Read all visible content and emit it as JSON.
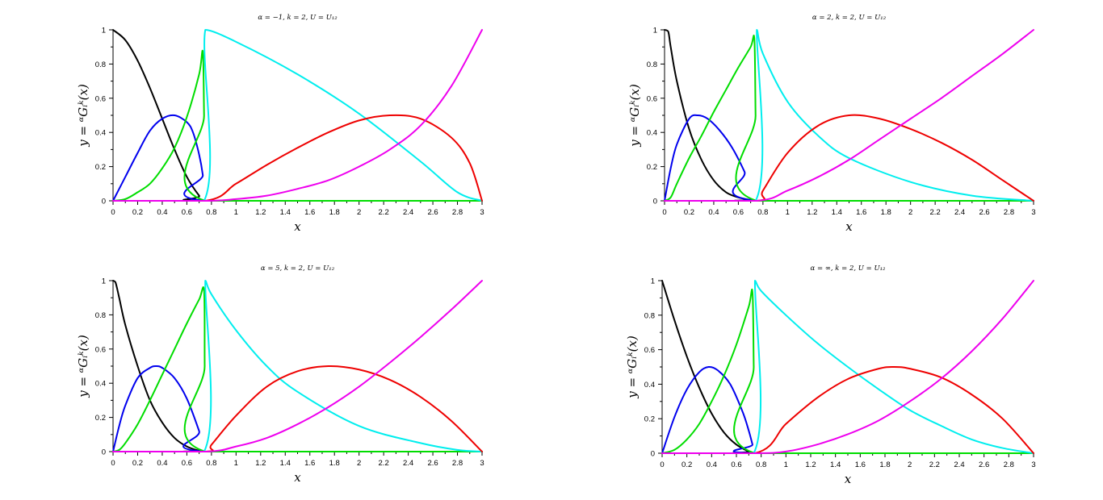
{
  "chart_data": [
    {
      "type": "line",
      "title": "α = −1, k = 2, U = U₁₂",
      "xlabel": "x",
      "ylabel": "y = ᵅGᵢᵏ(x)",
      "xlim": [
        0,
        3
      ],
      "ylim": [
        0,
        1
      ],
      "xticks": [
        0,
        0.2,
        0.4,
        0.6,
        0.8,
        1,
        1.2,
        1.4,
        1.6,
        1.8,
        2,
        2.2,
        2.4,
        2.6,
        2.8,
        3
      ],
      "xtick_labels": [
        "0",
        "0.2",
        "0.4",
        "0.6",
        "0.8",
        "1",
        "1.2",
        "1.4",
        "1.6",
        "1.8",
        "2",
        "2.2",
        "2.4",
        "2.6",
        "2.8",
        "3"
      ],
      "yticks": [
        0,
        0.2,
        0.4,
        0.6,
        0.8,
        1
      ],
      "ytick_labels": [
        "0",
        "0.2",
        "0.4",
        "0.6",
        "0.8",
        "1"
      ],
      "grid": false,
      "series": [
        {
          "color": "#000000",
          "x": [
            0,
            0.1,
            0.2,
            0.3,
            0.4,
            0.5,
            0.6,
            0.7,
            0.75,
            3
          ],
          "y": [
            1,
            0.94,
            0.82,
            0.66,
            0.48,
            0.3,
            0.14,
            0.03,
            0,
            0
          ]
        },
        {
          "color": "#0000ee",
          "x": [
            0,
            0.1,
            0.2,
            0.3,
            0.4,
            0.5,
            0.6,
            0.65,
            0.7,
            0.73,
            0.75,
            3
          ],
          "y": [
            0,
            0.14,
            0.28,
            0.41,
            0.48,
            0.5,
            0.46,
            0.4,
            0.27,
            0.15,
            0,
            0
          ]
        },
        {
          "color": "#00dd00",
          "x": [
            0,
            0.1,
            0.2,
            0.3,
            0.4,
            0.5,
            0.6,
            0.7,
            0.73,
            0.74,
            0.75,
            3
          ],
          "y": [
            0,
            0.01,
            0.05,
            0.1,
            0.19,
            0.31,
            0.49,
            0.74,
            0.87,
            0.5,
            0,
            0
          ]
        },
        {
          "color": "#00eeee",
          "x": [
            0,
            0.74,
            0.75,
            1,
            1.5,
            2,
            2.5,
            2.8,
            3
          ],
          "y": [
            0,
            0,
            1,
            0.93,
            0.74,
            0.51,
            0.23,
            0.05,
            0
          ]
        },
        {
          "color": "#ee0000",
          "x": [
            0,
            0.75,
            1,
            1.25,
            1.5,
            1.75,
            2,
            2.25,
            2.5,
            2.75,
            2.9,
            3
          ],
          "y": [
            0,
            0,
            0.1,
            0.21,
            0.31,
            0.4,
            0.47,
            0.5,
            0.48,
            0.37,
            0.22,
            0
          ]
        },
        {
          "color": "#ee00ee",
          "x": [
            0,
            0.75,
            1,
            1.25,
            1.5,
            1.75,
            2,
            2.25,
            2.5,
            2.75,
            3
          ],
          "y": [
            0,
            0,
            0.01,
            0.03,
            0.07,
            0.12,
            0.2,
            0.3,
            0.44,
            0.67,
            1
          ]
        }
      ]
    },
    {
      "type": "line",
      "title": "α = 2, k = 2, U = U₁₂",
      "xlabel": "x",
      "ylabel": "y = ᵅGᵢᵏ(x)",
      "xlim": [
        0,
        3
      ],
      "ylim": [
        0,
        1
      ],
      "xticks": [
        0,
        0.2,
        0.4,
        0.6,
        0.8,
        1,
        1.2,
        1.4,
        1.6,
        1.8,
        2,
        2.2,
        2.4,
        2.6,
        2.8,
        3
      ],
      "xtick_labels": [
        "0",
        "0.2",
        "0.4",
        "0.6",
        "0.8",
        "1",
        "1.2",
        "1.4",
        "1.6",
        "1.8",
        "2",
        "2.2",
        "2.4",
        "2.6",
        "2.8",
        "3"
      ],
      "yticks": [
        0,
        0.2,
        0.4,
        0.6,
        0.8,
        1
      ],
      "ytick_labels": [
        "0",
        "0.2",
        "0.4",
        "0.6",
        "0.8",
        "1"
      ],
      "grid": false,
      "series": [
        {
          "color": "#000000",
          "x": [
            0,
            0.03,
            0.05,
            0.1,
            0.2,
            0.3,
            0.4,
            0.5,
            0.6,
            0.7,
            0.75,
            3
          ],
          "y": [
            1,
            0.99,
            0.9,
            0.7,
            0.42,
            0.24,
            0.12,
            0.05,
            0.02,
            0.005,
            0,
            0
          ]
        },
        {
          "color": "#0000ee",
          "x": [
            0,
            0.05,
            0.1,
            0.2,
            0.27,
            0.35,
            0.45,
            0.55,
            0.65,
            0.75,
            3
          ],
          "y": [
            0,
            0.19,
            0.33,
            0.48,
            0.5,
            0.48,
            0.41,
            0.31,
            0.17,
            0,
            0
          ]
        },
        {
          "color": "#00dd00",
          "x": [
            0,
            0.05,
            0.1,
            0.2,
            0.3,
            0.4,
            0.5,
            0.6,
            0.7,
            0.73,
            0.74,
            0.75,
            3
          ],
          "y": [
            0,
            0.02,
            0.1,
            0.25,
            0.38,
            0.52,
            0.65,
            0.78,
            0.9,
            0.95,
            0.5,
            0,
            0
          ]
        },
        {
          "color": "#00eeee",
          "x": [
            0,
            0.74,
            0.75,
            0.8,
            1,
            1.25,
            1.5,
            2,
            2.5,
            3
          ],
          "y": [
            0,
            0,
            1,
            0.86,
            0.58,
            0.38,
            0.25,
            0.11,
            0.03,
            0
          ]
        },
        {
          "color": "#ee0000",
          "x": [
            0,
            0.75,
            0.8,
            1,
            1.25,
            1.5,
            1.75,
            2,
            2.25,
            2.5,
            2.75,
            3
          ],
          "y": [
            0,
            0,
            0.06,
            0.28,
            0.44,
            0.5,
            0.48,
            0.42,
            0.34,
            0.24,
            0.12,
            0
          ]
        },
        {
          "color": "#ee00ee",
          "x": [
            0,
            0.75,
            1,
            1.25,
            1.5,
            1.75,
            2,
            2.25,
            2.5,
            2.75,
            3
          ],
          "y": [
            0,
            0,
            0.06,
            0.14,
            0.24,
            0.36,
            0.48,
            0.6,
            0.73,
            0.86,
            1
          ]
        }
      ]
    },
    {
      "type": "line",
      "title": "α = 5, k = 2, U = U₁₂",
      "xlabel": "x",
      "ylabel": "y = ᵅGᵢᵏ(x)",
      "xlim": [
        0,
        3
      ],
      "ylim": [
        0,
        1
      ],
      "xticks": [
        0,
        0.2,
        0.4,
        0.6,
        0.8,
        1,
        1.2,
        1.4,
        1.6,
        1.8,
        2,
        2.2,
        2.4,
        2.6,
        2.8,
        3
      ],
      "xtick_labels": [
        "0",
        "0.2",
        "0.4",
        "0.6",
        "0.8",
        "1",
        "1.2",
        "1.4",
        "1.6",
        "1.8",
        "2",
        "2.2",
        "2.4",
        "2.6",
        "2.8",
        "3"
      ],
      "yticks": [
        0,
        0.2,
        0.4,
        0.6,
        0.8,
        1
      ],
      "ytick_labels": [
        "0",
        "0.2",
        "0.4",
        "0.6",
        "0.8",
        "1"
      ],
      "grid": false,
      "series": [
        {
          "color": "#000000",
          "x": [
            0,
            0.02,
            0.05,
            0.1,
            0.2,
            0.3,
            0.4,
            0.5,
            0.6,
            0.7,
            0.75,
            3
          ],
          "y": [
            1,
            0.99,
            0.9,
            0.74,
            0.5,
            0.3,
            0.17,
            0.08,
            0.03,
            0.005,
            0,
            0
          ]
        },
        {
          "color": "#0000ee",
          "x": [
            0,
            0.05,
            0.1,
            0.2,
            0.3,
            0.35,
            0.4,
            0.5,
            0.6,
            0.7,
            0.75,
            3
          ],
          "y": [
            0,
            0.15,
            0.27,
            0.43,
            0.49,
            0.5,
            0.49,
            0.43,
            0.31,
            0.12,
            0,
            0
          ]
        },
        {
          "color": "#00dd00",
          "x": [
            0,
            0.05,
            0.1,
            0.2,
            0.3,
            0.4,
            0.5,
            0.6,
            0.7,
            0.74,
            0.745,
            0.75,
            3
          ],
          "y": [
            0,
            0.01,
            0.05,
            0.16,
            0.3,
            0.45,
            0.6,
            0.75,
            0.89,
            0.94,
            0.5,
            0,
            0
          ]
        },
        {
          "color": "#00eeee",
          "x": [
            0,
            0.74,
            0.75,
            0.8,
            1,
            1.25,
            1.5,
            2,
            2.5,
            2.8,
            3
          ],
          "y": [
            0,
            0,
            1,
            0.92,
            0.71,
            0.5,
            0.35,
            0.15,
            0.05,
            0.01,
            0
          ]
        },
        {
          "color": "#ee0000",
          "x": [
            0,
            0.75,
            0.8,
            1,
            1.25,
            1.5,
            1.75,
            2,
            2.25,
            2.5,
            2.75,
            3
          ],
          "y": [
            0,
            0,
            0.04,
            0.21,
            0.38,
            0.47,
            0.5,
            0.48,
            0.42,
            0.32,
            0.18,
            0
          ]
        },
        {
          "color": "#ee00ee",
          "x": [
            0,
            0.75,
            1,
            1.25,
            1.5,
            1.75,
            2,
            2.25,
            2.5,
            2.75,
            3
          ],
          "y": [
            0,
            0,
            0.03,
            0.08,
            0.16,
            0.26,
            0.38,
            0.52,
            0.67,
            0.83,
            1
          ]
        }
      ]
    },
    {
      "type": "line",
      "title": "α = ∞, k = 2, U = U₁₂",
      "xlabel": "x",
      "ylabel": "y = ᵅGᵢᵏ(x)",
      "xlim": [
        0,
        3
      ],
      "ylim": [
        0,
        1
      ],
      "xticks": [
        0,
        0.2,
        0.4,
        0.6,
        0.8,
        1,
        1.2,
        1.4,
        1.6,
        1.8,
        2,
        2.2,
        2.4,
        2.6,
        2.8,
        3
      ],
      "xtick_labels": [
        "0",
        "0.2",
        "0.4",
        "0.6",
        "0.8",
        "1",
        "1.2",
        "1.4",
        "1.6",
        "1.8",
        "2",
        "2.2",
        "2.4",
        "2.6",
        "2.8",
        "3"
      ],
      "yticks": [
        0,
        0.2,
        0.4,
        0.6,
        0.8,
        1
      ],
      "ytick_labels": [
        "0",
        "0.2",
        "0.4",
        "0.6",
        "0.8",
        "1"
      ],
      "grid": false,
      "series": [
        {
          "color": "#000000",
          "x": [
            0,
            0.1,
            0.2,
            0.3,
            0.4,
            0.5,
            0.6,
            0.7,
            0.75,
            3
          ],
          "y": [
            1,
            0.77,
            0.56,
            0.38,
            0.23,
            0.12,
            0.05,
            0.01,
            0,
            0
          ]
        },
        {
          "color": "#0000ee",
          "x": [
            0,
            0.1,
            0.2,
            0.3,
            0.375,
            0.45,
            0.55,
            0.65,
            0.7,
            0.73,
            0.75,
            3
          ],
          "y": [
            0,
            0.21,
            0.37,
            0.47,
            0.5,
            0.48,
            0.4,
            0.24,
            0.13,
            0.05,
            0,
            0
          ]
        },
        {
          "color": "#00dd00",
          "x": [
            0,
            0.1,
            0.2,
            0.3,
            0.4,
            0.5,
            0.6,
            0.7,
            0.73,
            0.74,
            0.75,
            3
          ],
          "y": [
            0,
            0.02,
            0.08,
            0.17,
            0.3,
            0.45,
            0.63,
            0.85,
            0.93,
            0.5,
            0,
            0
          ]
        },
        {
          "color": "#00eeee",
          "x": [
            0,
            0.74,
            0.75,
            0.8,
            1,
            1.25,
            1.5,
            1.75,
            2,
            2.25,
            2.5,
            2.75,
            3
          ],
          "y": [
            0,
            0,
            1,
            0.94,
            0.8,
            0.64,
            0.5,
            0.37,
            0.25,
            0.16,
            0.08,
            0.03,
            0
          ]
        },
        {
          "color": "#ee0000",
          "x": [
            0,
            0.75,
            1,
            1.25,
            1.5,
            1.75,
            1.875,
            2,
            2.25,
            2.5,
            2.75,
            3
          ],
          "y": [
            0,
            0,
            0.17,
            0.32,
            0.43,
            0.49,
            0.5,
            0.49,
            0.44,
            0.34,
            0.2,
            0
          ]
        },
        {
          "color": "#ee00ee",
          "x": [
            0,
            0.75,
            1,
            1.25,
            1.5,
            1.75,
            2,
            2.25,
            2.5,
            2.75,
            3
          ],
          "y": [
            0,
            0,
            0.01,
            0.05,
            0.11,
            0.19,
            0.3,
            0.43,
            0.59,
            0.78,
            1
          ]
        }
      ]
    }
  ]
}
